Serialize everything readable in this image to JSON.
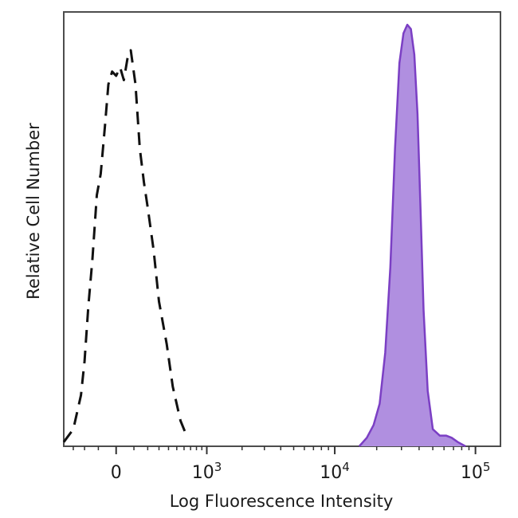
{
  "chart_data": {
    "type": "area",
    "title": "",
    "xlabel": "Log Fluorescence Intensity",
    "ylabel": "Relative Cell Number",
    "x_scale": "biexponential (linear near 0, log above 10^3)",
    "xlim": [
      -400,
      150000
    ],
    "ylim": [
      0,
      1.02
    ],
    "grid": false,
    "legend": "none",
    "x_ticks": [
      {
        "value": 0,
        "base": "0",
        "exp": ""
      },
      {
        "value": 1000,
        "base": "10",
        "exp": "3"
      },
      {
        "value": 10000,
        "base": "10",
        "exp": "4"
      },
      {
        "value": 100000,
        "base": "10",
        "exp": "5"
      }
    ],
    "series": [
      {
        "style": "dashed",
        "color": "#111111",
        "fill": "none",
        "x": [
          -400,
          -300,
          -230,
          -200,
          -170,
          -140,
          -110,
          -85,
          -60,
          -40,
          -20,
          0,
          20,
          40,
          60,
          80,
          110,
          140,
          170,
          200,
          250,
          300,
          380,
          450,
          550,
          650
        ],
        "y": [
          0.01,
          0.04,
          0.12,
          0.2,
          0.33,
          0.44,
          0.59,
          0.64,
          0.75,
          0.85,
          0.88,
          0.87,
          0.89,
          0.86,
          0.91,
          0.93,
          0.85,
          0.7,
          0.62,
          0.56,
          0.46,
          0.34,
          0.24,
          0.14,
          0.06,
          0.02
        ]
      },
      {
        "style": "solid",
        "color": "#7b3fc4",
        "fill": "#b08fe0",
        "x": [
          15000,
          17000,
          19000,
          21000,
          23000,
          25000,
          27000,
          29000,
          31000,
          33000,
          35000,
          37000,
          39000,
          41000,
          43000,
          46000,
          50000,
          56000,
          62000,
          68000,
          75000,
          85000
        ],
        "y": [
          0.0,
          0.02,
          0.05,
          0.1,
          0.22,
          0.42,
          0.7,
          0.9,
          0.97,
          0.99,
          0.98,
          0.92,
          0.78,
          0.55,
          0.32,
          0.13,
          0.04,
          0.025,
          0.025,
          0.02,
          0.01,
          0.0
        ]
      }
    ]
  }
}
